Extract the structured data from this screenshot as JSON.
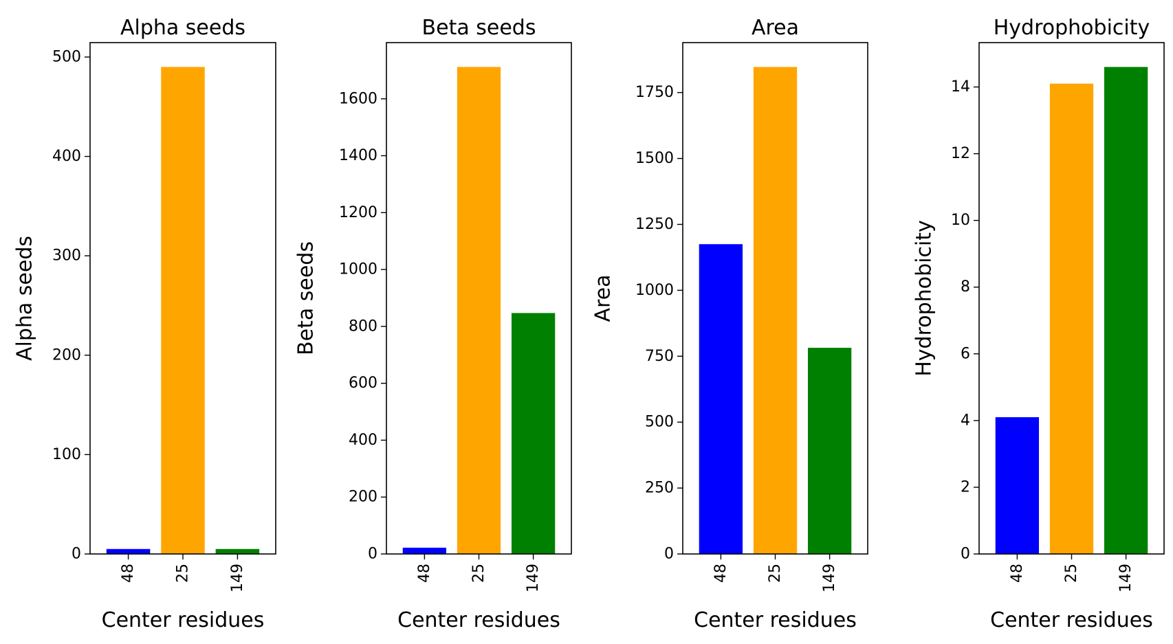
{
  "chart_data": [
    {
      "type": "bar",
      "title": "Alpha seeds",
      "xlabel": "Center residues",
      "ylabel": "Alpha seeds",
      "categories": [
        "48",
        "25",
        "149"
      ],
      "values": [
        5,
        490,
        5
      ],
      "colors": [
        "#0000ff",
        "#ffa500",
        "#008000"
      ],
      "ylim": [
        0,
        514.5
      ],
      "yticks": [
        0,
        100,
        200,
        300,
        400,
        500
      ],
      "grid": false
    },
    {
      "type": "bar",
      "title": "Beta seeds",
      "xlabel": "Center residues",
      "ylabel": "Beta seeds",
      "categories": [
        "48",
        "25",
        "149"
      ],
      "values": [
        22,
        1712,
        847
      ],
      "colors": [
        "#0000ff",
        "#ffa500",
        "#008000"
      ],
      "ylim": [
        0,
        1797.6
      ],
      "yticks": [
        0,
        200,
        400,
        600,
        800,
        1000,
        1200,
        1400,
        1600
      ],
      "grid": false
    },
    {
      "type": "bar",
      "title": "Area",
      "xlabel": "Center residues",
      "ylabel": "Area",
      "categories": [
        "48",
        "25",
        "149"
      ],
      "values": [
        1175,
        1847,
        782
      ],
      "colors": [
        "#0000ff",
        "#ffa500",
        "#008000"
      ],
      "ylim": [
        0,
        1939.4
      ],
      "yticks": [
        0,
        250,
        500,
        750,
        1000,
        1250,
        1500,
        1750
      ],
      "grid": false
    },
    {
      "type": "bar",
      "title": "Hydrophobicity",
      "xlabel": "Center residues",
      "ylabel": "Hydrophobicity",
      "categories": [
        "48",
        "25",
        "149"
      ],
      "values": [
        4.1,
        14.1,
        14.6
      ],
      "colors": [
        "#0000ff",
        "#ffa500",
        "#008000"
      ],
      "ylim": [
        0,
        15.33
      ],
      "yticks": [
        0,
        2,
        4,
        6,
        8,
        10,
        12,
        14
      ],
      "grid": false
    }
  ]
}
